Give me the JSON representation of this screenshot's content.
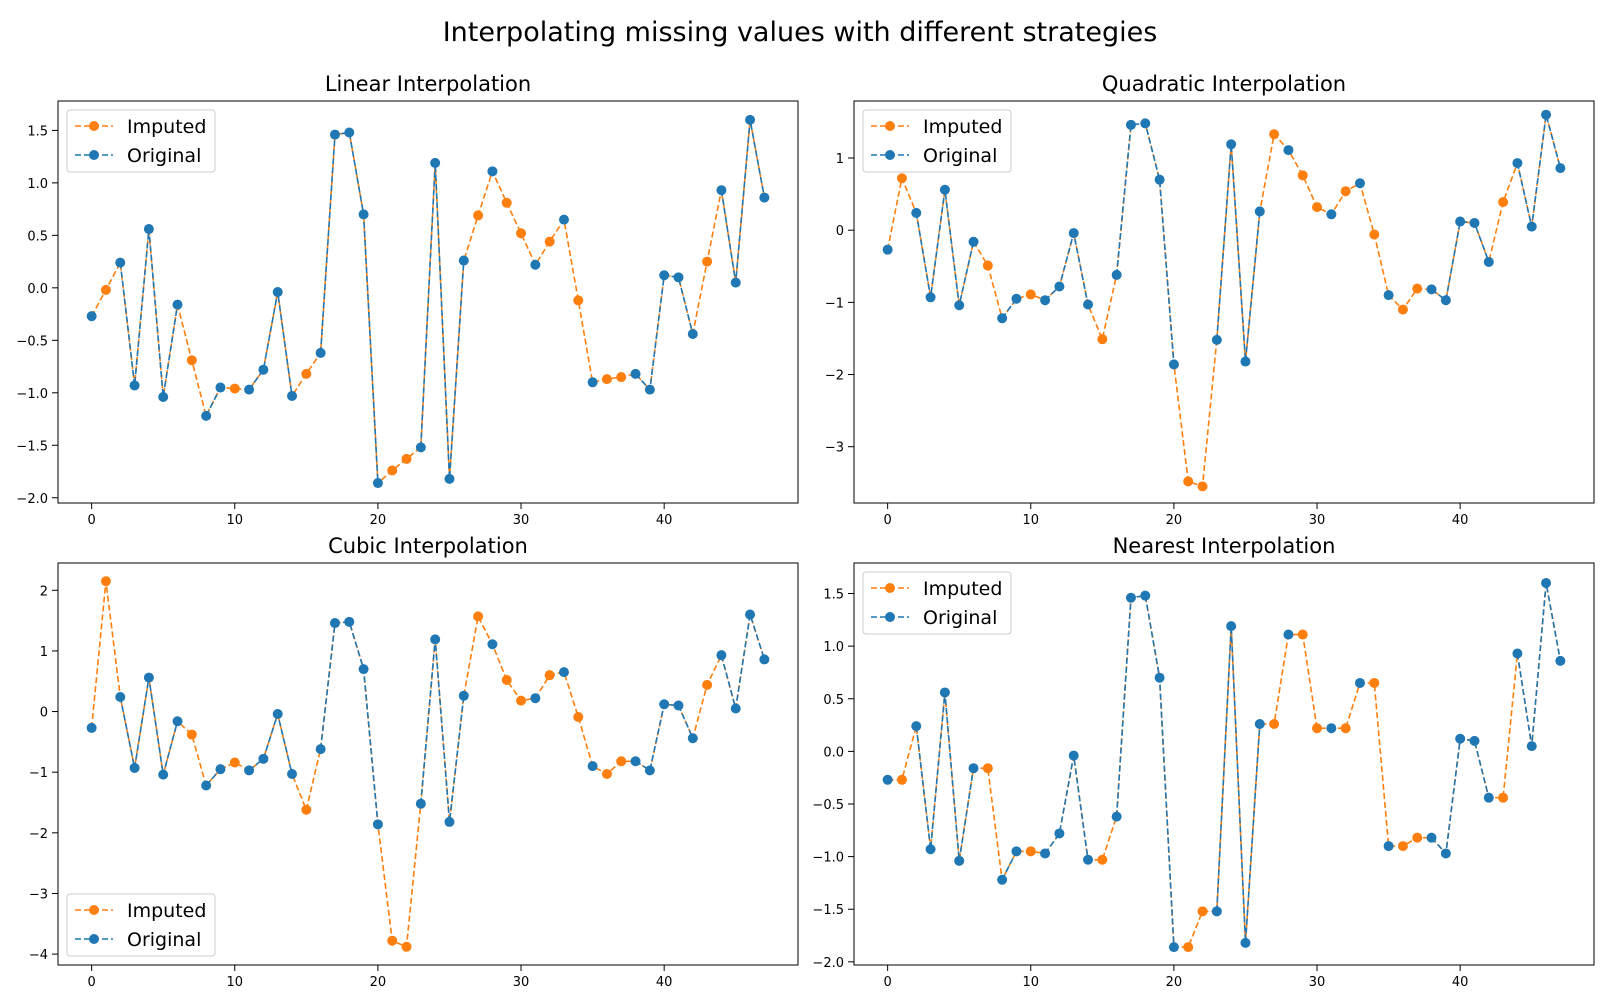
{
  "figure": {
    "title": "Interpolating missing values with different strategies"
  },
  "legend_labels": {
    "imputed": "Imputed",
    "original": "Original"
  },
  "colors": {
    "imputed": "#ff7f0e",
    "original": "#1f77b4",
    "axis": "#000000"
  },
  "chart_data": [
    {
      "type": "line",
      "title": "Linear Interpolation",
      "xlabel": "",
      "ylabel": "",
      "xlim": [
        -2.35,
        49.35
      ],
      "ylim": [
        -2.05,
        1.78
      ],
      "xticks": [
        0,
        10,
        20,
        30,
        40
      ],
      "yticks": [
        -2.0,
        -1.5,
        -1.0,
        -0.5,
        0.0,
        0.5,
        1.0,
        1.5
      ],
      "ytick_labels": [
        "−2.0",
        "−1.5",
        "−1.0",
        "−0.5",
        "0.0",
        "0.5",
        "1.0",
        "1.5"
      ],
      "legend_position": "upper left",
      "grid": false,
      "x": [
        0,
        1,
        2,
        3,
        4,
        5,
        6,
        7,
        8,
        9,
        10,
        11,
        12,
        13,
        14,
        15,
        16,
        17,
        18,
        19,
        20,
        21,
        22,
        23,
        24,
        25,
        26,
        27,
        28,
        29,
        30,
        31,
        32,
        33,
        34,
        35,
        36,
        37,
        38,
        39,
        40,
        41,
        42,
        43,
        44,
        45,
        46,
        47
      ],
      "values": [
        -0.27,
        -0.02,
        0.24,
        -0.93,
        0.56,
        -1.04,
        -0.16,
        -0.69,
        -1.22,
        -0.95,
        -0.96,
        -0.97,
        -0.78,
        -0.04,
        -1.03,
        -0.82,
        -0.62,
        1.46,
        1.48,
        0.7,
        -1.86,
        -1.74,
        -1.63,
        -1.52,
        1.19,
        -1.82,
        0.26,
        0.69,
        1.11,
        0.81,
        0.52,
        0.22,
        0.44,
        0.65,
        -0.12,
        -0.9,
        -0.87,
        -0.85,
        -0.82,
        -0.97,
        0.12,
        0.1,
        -0.44,
        0.25,
        0.93,
        0.05,
        1.6,
        0.86
      ],
      "imputed_x": [
        1,
        7,
        10,
        15,
        21,
        22,
        27,
        29,
        30,
        32,
        34,
        36,
        37,
        43
      ]
    },
    {
      "type": "line",
      "title": "Quadratic Interpolation",
      "xlabel": "",
      "ylabel": "",
      "xlim": [
        -2.35,
        49.35
      ],
      "ylim": [
        -3.78,
        1.79
      ],
      "xticks": [
        0,
        10,
        20,
        30,
        40
      ],
      "yticks": [
        -3,
        -2,
        -1,
        0,
        1
      ],
      "ytick_labels": [
        "−3",
        "−2",
        "−1",
        "0",
        "1"
      ],
      "legend_position": "upper left",
      "grid": false,
      "x": [
        0,
        1,
        2,
        3,
        4,
        5,
        6,
        7,
        8,
        9,
        10,
        11,
        12,
        13,
        14,
        15,
        16,
        17,
        18,
        19,
        20,
        21,
        22,
        23,
        24,
        25,
        26,
        27,
        28,
        29,
        30,
        31,
        32,
        33,
        34,
        35,
        36,
        37,
        38,
        39,
        40,
        41,
        42,
        43,
        44,
        45,
        46,
        47
      ],
      "values": [
        -0.27,
        0.72,
        0.24,
        -0.93,
        0.56,
        -1.04,
        -0.16,
        -0.49,
        -1.22,
        -0.95,
        -0.89,
        -0.97,
        -0.78,
        -0.04,
        -1.03,
        -1.51,
        -0.62,
        1.46,
        1.48,
        0.7,
        -1.86,
        -3.48,
        -3.55,
        -1.52,
        1.19,
        -1.82,
        0.26,
        1.33,
        1.11,
        0.76,
        0.32,
        0.22,
        0.54,
        0.65,
        -0.06,
        -0.9,
        -1.1,
        -0.81,
        -0.82,
        -0.97,
        0.12,
        0.1,
        -0.44,
        0.39,
        0.93,
        0.05,
        1.6,
        0.86
      ],
      "imputed_x": [
        1,
        7,
        10,
        15,
        21,
        22,
        27,
        29,
        30,
        32,
        34,
        36,
        37,
        43
      ]
    },
    {
      "type": "line",
      "title": "Cubic Interpolation",
      "xlabel": "",
      "ylabel": "",
      "xlim": [
        -2.35,
        49.35
      ],
      "ylim": [
        -4.18,
        2.45
      ],
      "xticks": [
        0,
        10,
        20,
        30,
        40
      ],
      "yticks": [
        -4,
        -3,
        -2,
        -1,
        0,
        1,
        2
      ],
      "ytick_labels": [
        "−4",
        "−3",
        "−2",
        "−1",
        "0",
        "1",
        "2"
      ],
      "legend_position": "lower left",
      "grid": false,
      "x": [
        0,
        1,
        2,
        3,
        4,
        5,
        6,
        7,
        8,
        9,
        10,
        11,
        12,
        13,
        14,
        15,
        16,
        17,
        18,
        19,
        20,
        21,
        22,
        23,
        24,
        25,
        26,
        27,
        28,
        29,
        30,
        31,
        32,
        33,
        34,
        35,
        36,
        37,
        38,
        39,
        40,
        41,
        42,
        43,
        44,
        45,
        46,
        47
      ],
      "values": [
        -0.27,
        2.15,
        0.24,
        -0.93,
        0.56,
        -1.04,
        -0.16,
        -0.38,
        -1.22,
        -0.95,
        -0.84,
        -0.97,
        -0.78,
        -0.04,
        -1.03,
        -1.62,
        -0.62,
        1.46,
        1.48,
        0.7,
        -1.86,
        -3.78,
        -3.88,
        -1.52,
        1.19,
        -1.82,
        0.26,
        1.57,
        1.11,
        0.52,
        0.18,
        0.22,
        0.6,
        0.65,
        -0.09,
        -0.9,
        -1.03,
        -0.82,
        -0.82,
        -0.97,
        0.12,
        0.1,
        -0.44,
        0.44,
        0.93,
        0.05,
        1.6,
        0.86
      ],
      "imputed_x": [
        1,
        7,
        10,
        15,
        21,
        22,
        27,
        29,
        30,
        32,
        34,
        36,
        37,
        43
      ]
    },
    {
      "type": "line",
      "title": "Nearest Interpolation",
      "xlabel": "",
      "ylabel": "",
      "xlim": [
        -2.35,
        49.35
      ],
      "ylim": [
        -2.03,
        1.79
      ],
      "xticks": [
        0,
        10,
        20,
        30,
        40
      ],
      "yticks": [
        -2.0,
        -1.5,
        -1.0,
        -0.5,
        0.0,
        0.5,
        1.0,
        1.5
      ],
      "ytick_labels": [
        "−2.0",
        "−1.5",
        "−1.0",
        "−0.5",
        "0.0",
        "0.5",
        "1.0",
        "1.5"
      ],
      "legend_position": "upper left",
      "grid": false,
      "x": [
        0,
        1,
        2,
        3,
        4,
        5,
        6,
        7,
        8,
        9,
        10,
        11,
        12,
        13,
        14,
        15,
        16,
        17,
        18,
        19,
        20,
        21,
        22,
        23,
        24,
        25,
        26,
        27,
        28,
        29,
        30,
        31,
        32,
        33,
        34,
        35,
        36,
        37,
        38,
        39,
        40,
        41,
        42,
        43,
        44,
        45,
        46,
        47
      ],
      "values": [
        -0.27,
        -0.27,
        0.24,
        -0.93,
        0.56,
        -1.04,
        -0.16,
        -0.16,
        -1.22,
        -0.95,
        -0.95,
        -0.97,
        -0.78,
        -0.04,
        -1.03,
        -1.03,
        -0.62,
        1.46,
        1.48,
        0.7,
        -1.86,
        -1.86,
        -1.52,
        -1.52,
        1.19,
        -1.82,
        0.26,
        0.26,
        1.11,
        1.11,
        0.22,
        0.22,
        0.22,
        0.65,
        0.65,
        -0.9,
        -0.9,
        -0.82,
        -0.82,
        -0.97,
        0.12,
        0.1,
        -0.44,
        -0.44,
        0.93,
        0.05,
        1.6,
        0.86
      ],
      "imputed_x": [
        1,
        7,
        10,
        15,
        21,
        22,
        27,
        29,
        30,
        32,
        34,
        36,
        37,
        43
      ]
    }
  ]
}
